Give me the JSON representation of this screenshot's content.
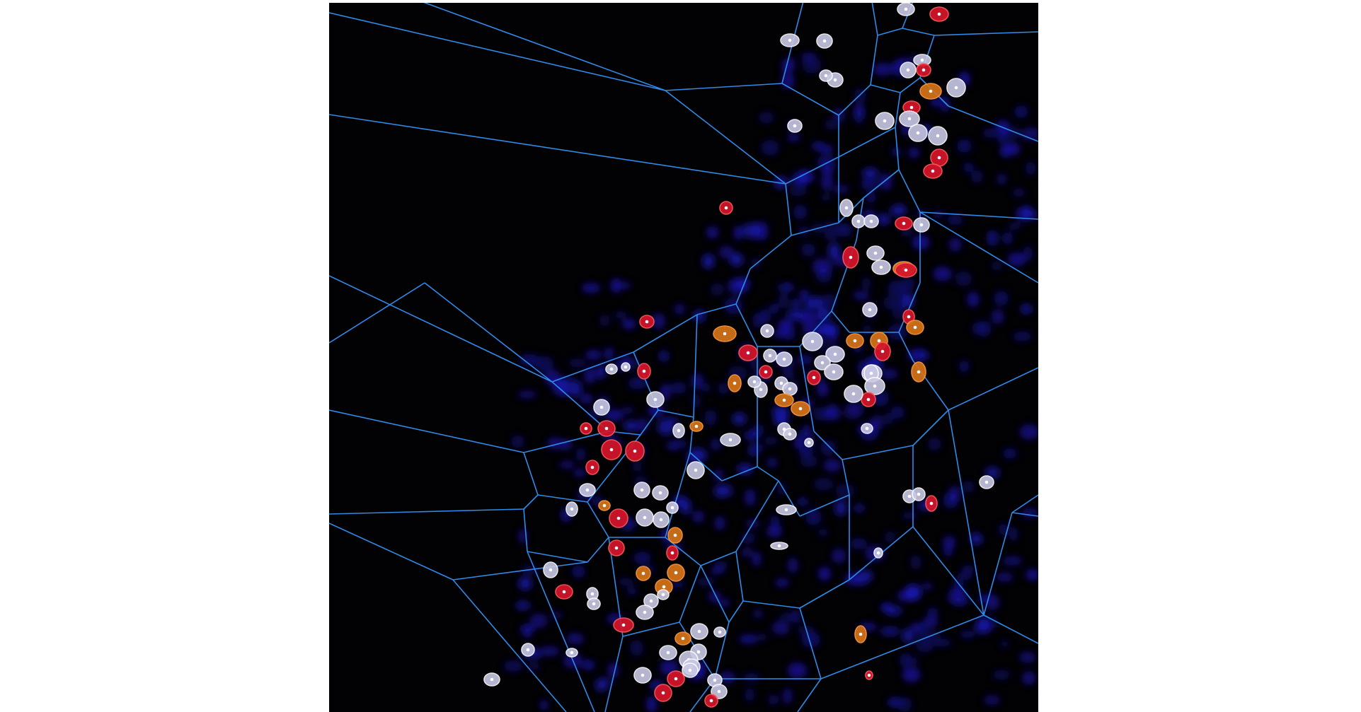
{
  "image": {
    "background": "#ffffff",
    "panel_fill": "#020103",
    "voronoi_color": "#2f8ae8",
    "nucleus_color": "#1a16b8",
    "cell_types": [
      {
        "name": "white",
        "fill": "#c9c9e6",
        "stroke": "#ffffff"
      },
      {
        "name": "red",
        "fill": "#d6152b",
        "stroke": "#ff5a5a"
      },
      {
        "name": "orange",
        "fill": "#d6731a",
        "stroke": "#ff9a3c"
      }
    ]
  }
}
